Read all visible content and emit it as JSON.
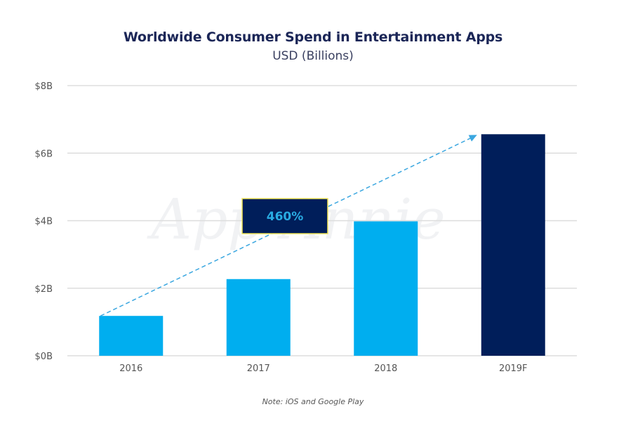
{
  "chart_data": {
    "type": "bar",
    "title": "Worldwide Consumer Spend in Entertainment Apps",
    "subtitle": "USD (Billions)",
    "xlabel": "",
    "ylabel": "",
    "categories": [
      "2016",
      "2017",
      "2018",
      "2019F"
    ],
    "values": [
      1.18,
      2.27,
      3.98,
      6.56
    ],
    "bar_colors": [
      "#00aeef",
      "#00aeef",
      "#00aeef",
      "#001e5a"
    ],
    "ylim": [
      0,
      8
    ],
    "yticks": [
      0,
      2,
      4,
      6,
      8
    ],
    "ytick_labels": [
      "$0B",
      "$2B",
      "$4B",
      "$6B",
      "$8B"
    ],
    "grid": true,
    "annotations": [
      {
        "type": "arrow",
        "style": "dashed",
        "color": "#3ba7e0",
        "from": {
          "category": "2016",
          "value": 1.18
        },
        "to": {
          "category": "2019F",
          "value": 6.56
        }
      },
      {
        "type": "label-box",
        "text": "460%",
        "fill": "#001e5a",
        "border": "#f2e65a",
        "text_color": "#29abe2"
      }
    ],
    "note": "Note: iOS and Google Play",
    "watermark": "App Annie"
  }
}
